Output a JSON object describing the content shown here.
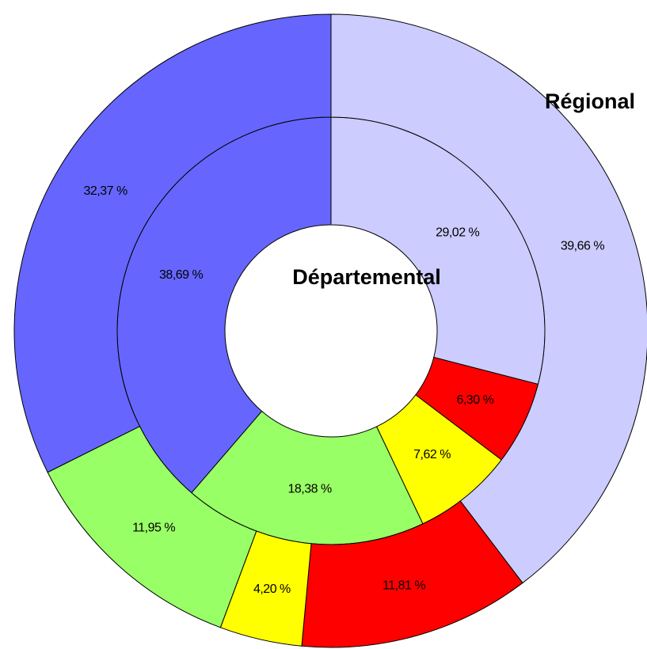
{
  "chart_data": {
    "type": "doughnut",
    "colors": [
      "#ccccff",
      "#ff0000",
      "#ffff00",
      "#99ff66",
      "#6666ff"
    ],
    "series": [
      {
        "name": "Départemental",
        "values": [
          29.02,
          6.3,
          7.62,
          18.38,
          38.69
        ],
        "value_labels": [
          "29,02 %",
          "6,30 %",
          "7,62 %",
          "18,38 %",
          "38,69 %"
        ]
      },
      {
        "name": "Régional",
        "values": [
          39.66,
          11.81,
          4.2,
          11.95,
          32.37
        ],
        "value_labels": [
          "39,66 %",
          "11,81 %",
          "4,20 %",
          "11,95 %",
          "32,37 %"
        ]
      }
    ]
  }
}
